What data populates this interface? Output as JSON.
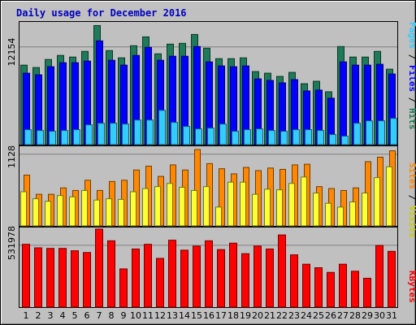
{
  "title": "Daily usage for December 2016",
  "colors": {
    "background": "#c0c0c0",
    "title": "#0000c0",
    "hits": "#1e7a58",
    "files": "#0000ff",
    "pages": "#33ccff",
    "visits": "#ffff33",
    "sites": "#ff8800",
    "kbytes": "#ff0000",
    "weekend_tick": "#008040",
    "weekday_tick": "#000000"
  },
  "chart_data": [
    {
      "type": "bar",
      "panel": "hits-files-pages",
      "y_label": "12154",
      "y_label_value": 12154,
      "ylim": [
        0,
        15200
      ],
      "categories": [
        "1",
        "2",
        "3",
        "4",
        "5",
        "6",
        "7",
        "8",
        "9",
        "10",
        "11",
        "12",
        "13",
        "14",
        "15",
        "16",
        "17",
        "18",
        "19",
        "20",
        "21",
        "22",
        "23",
        "24",
        "25",
        "26",
        "27",
        "28",
        "29",
        "30",
        "31"
      ],
      "series": [
        {
          "name": "Hits",
          "values": [
            9900,
            9600,
            10600,
            11100,
            10900,
            11600,
            14800,
            11700,
            10800,
            12300,
            13400,
            11300,
            12500,
            12600,
            13700,
            12000,
            10700,
            10700,
            10800,
            9100,
            8900,
            8500,
            9000,
            7600,
            7900,
            6600,
            12200,
            10900,
            10900,
            11600,
            9400
          ]
        },
        {
          "name": "Files",
          "values": [
            8900,
            8700,
            9700,
            10200,
            10200,
            10400,
            12900,
            10500,
            9900,
            11100,
            12100,
            10500,
            11000,
            11000,
            12200,
            10300,
            9800,
            9700,
            9800,
            8200,
            8000,
            7700,
            8100,
            6700,
            6800,
            5800,
            10300,
            9900,
            9900,
            10000,
            8800
          ]
        },
        {
          "name": "Pages",
          "values": [
            1900,
            1800,
            1700,
            1800,
            1900,
            2500,
            2700,
            2700,
            2600,
            3100,
            3100,
            4300,
            2800,
            2300,
            2000,
            2100,
            2600,
            1700,
            1900,
            2000,
            1800,
            1700,
            1900,
            1900,
            1800,
            1300,
            1100,
            2700,
            3000,
            3000,
            3300
          ]
        }
      ]
    },
    {
      "type": "bar",
      "panel": "visits-sites",
      "y_label": "1128",
      "y_label_value": 1128,
      "ylim": [
        0,
        1245
      ],
      "categories": [
        "1",
        "2",
        "3",
        "4",
        "5",
        "6",
        "7",
        "8",
        "9",
        "10",
        "11",
        "12",
        "13",
        "14",
        "15",
        "16",
        "17",
        "18",
        "19",
        "20",
        "21",
        "22",
        "23",
        "24",
        "25",
        "26",
        "27",
        "28",
        "29",
        "30",
        "31"
      ],
      "series": [
        {
          "name": "Visits",
          "values": [
            540,
            430,
            390,
            480,
            460,
            560,
            410,
            430,
            420,
            540,
            590,
            620,
            670,
            610,
            560,
            620,
            300,
            690,
            690,
            500,
            580,
            570,
            670,
            770,
            520,
            360,
            300,
            380,
            520,
            760,
            930
          ]
        },
        {
          "name": "Sites",
          "values": [
            800,
            500,
            500,
            600,
            560,
            720,
            560,
            700,
            720,
            880,
            940,
            780,
            960,
            880,
            1200,
            980,
            900,
            820,
            920,
            870,
            910,
            890,
            960,
            970,
            620,
            590,
            560,
            600,
            1010,
            1080,
            1180
          ]
        }
      ]
    },
    {
      "type": "bar",
      "panel": "kbytes",
      "y_label": "531978",
      "y_label_value": 531978,
      "ylim": [
        0,
        680000
      ],
      "categories": [
        "1",
        "2",
        "3",
        "4",
        "5",
        "6",
        "7",
        "8",
        "9",
        "10",
        "11",
        "12",
        "13",
        "14",
        "15",
        "16",
        "17",
        "18",
        "19",
        "20",
        "21",
        "22",
        "23",
        "24",
        "25",
        "26",
        "27",
        "28",
        "29",
        "30",
        "31"
      ],
      "series": [
        {
          "name": "KBytes",
          "values": [
            540000,
            510000,
            505000,
            505000,
            485000,
            470000,
            670000,
            570000,
            330000,
            500000,
            540000,
            420000,
            575000,
            490000,
            525000,
            570000,
            495000,
            550000,
            460000,
            525000,
            500000,
            620000,
            450000,
            370000,
            340000,
            300000,
            370000,
            310000,
            250000,
            530000,
            480000
          ]
        }
      ]
    }
  ],
  "panel_labels": [
    {
      "segments": [
        {
          "text": "Pages",
          "color": "#33ccff"
        },
        {
          "text": " / ",
          "color": "#000000"
        },
        {
          "text": "Files",
          "color": "#0000ff"
        },
        {
          "text": " / ",
          "color": "#000000"
        },
        {
          "text": "Hits",
          "color": "#1e7a58"
        }
      ]
    },
    {
      "segments": [
        {
          "text": "Sites",
          "color": "#ff8800"
        },
        {
          "text": " / ",
          "color": "#000000"
        },
        {
          "text": "Visits",
          "color": "#cccc00"
        }
      ]
    },
    {
      "segments": [
        {
          "text": "KBytes",
          "color": "#ff0000"
        }
      ]
    }
  ],
  "x_ticks": [
    {
      "label": "1",
      "weekend": false
    },
    {
      "label": "2",
      "weekend": false
    },
    {
      "label": "3",
      "weekend": true
    },
    {
      "label": "4",
      "weekend": true
    },
    {
      "label": "5",
      "weekend": false
    },
    {
      "label": "6",
      "weekend": false
    },
    {
      "label": "7",
      "weekend": false
    },
    {
      "label": "8",
      "weekend": false
    },
    {
      "label": "9",
      "weekend": false
    },
    {
      "label": "10",
      "weekend": true
    },
    {
      "label": "11",
      "weekend": true
    },
    {
      "label": "12",
      "weekend": false
    },
    {
      "label": "13",
      "weekend": false
    },
    {
      "label": "14",
      "weekend": false
    },
    {
      "label": "15",
      "weekend": false
    },
    {
      "label": "16",
      "weekend": false
    },
    {
      "label": "17",
      "weekend": true
    },
    {
      "label": "18",
      "weekend": true
    },
    {
      "label": "19",
      "weekend": false
    },
    {
      "label": "20",
      "weekend": false
    },
    {
      "label": "21",
      "weekend": false
    },
    {
      "label": "22",
      "weekend": false
    },
    {
      "label": "23",
      "weekend": false
    },
    {
      "label": "24",
      "weekend": true
    },
    {
      "label": "25",
      "weekend": true
    },
    {
      "label": "26",
      "weekend": false
    },
    {
      "label": "27",
      "weekend": false
    },
    {
      "label": "28",
      "weekend": false
    },
    {
      "label": "29",
      "weekend": false
    },
    {
      "label": "30",
      "weekend": false
    },
    {
      "label": "31",
      "weekend": true
    }
  ]
}
